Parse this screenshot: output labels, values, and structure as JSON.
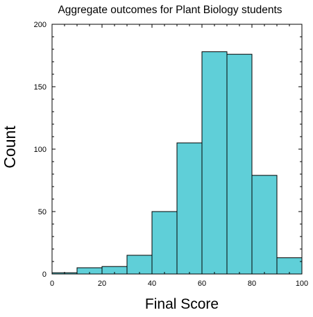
{
  "chart_data": {
    "type": "bar",
    "title": "Aggregate outcomes for Plant Biology students",
    "xlabel": "Final Score",
    "ylabel": "Count",
    "xlim": [
      0,
      100
    ],
    "ylim": [
      0,
      200
    ],
    "x_ticks": [
      0,
      20,
      40,
      60,
      80,
      100
    ],
    "y_ticks": [
      0,
      50,
      100,
      150,
      200
    ],
    "bins": [
      {
        "start": 0,
        "end": 10,
        "value": 1
      },
      {
        "start": 10,
        "end": 20,
        "value": 5
      },
      {
        "start": 20,
        "end": 30,
        "value": 6
      },
      {
        "start": 30,
        "end": 40,
        "value": 15
      },
      {
        "start": 40,
        "end": 50,
        "value": 50
      },
      {
        "start": 50,
        "end": 60,
        "value": 105
      },
      {
        "start": 60,
        "end": 70,
        "value": 178
      },
      {
        "start": 70,
        "end": 80,
        "value": 176
      },
      {
        "start": 80,
        "end": 90,
        "value": 79
      },
      {
        "start": 90,
        "end": 100,
        "value": 13
      }
    ],
    "grid": false,
    "legend": "none",
    "bar_color": "#5fcfd8"
  }
}
